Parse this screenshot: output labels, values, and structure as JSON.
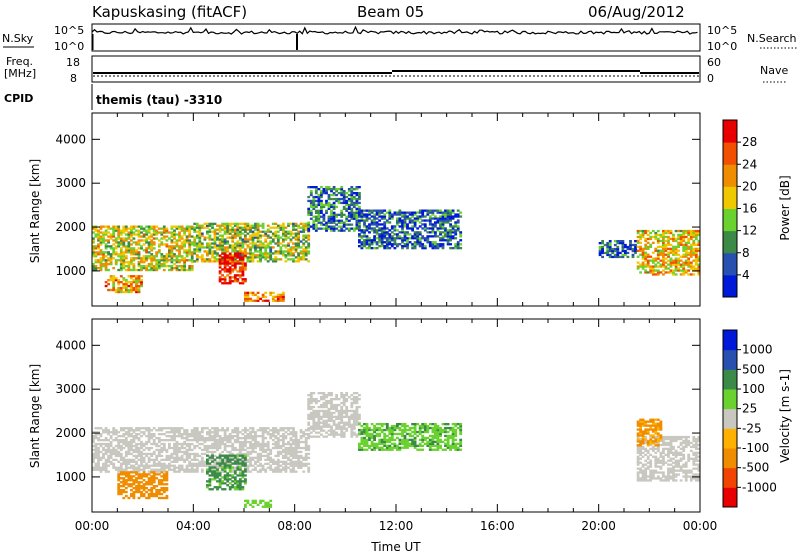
{
  "header": {
    "station": "Kapuskasing (fitACF)",
    "beam": "Beam 05",
    "date": "06/Aug/2012"
  },
  "status_panels": {
    "nsky": {
      "label": "N.Sky",
      "tick_top": "10^5",
      "tick_bottom": "10^0",
      "right_label": "N.Search",
      "right_tick_top": "10^5",
      "right_tick_bottom": "10^0"
    },
    "freq": {
      "label_line1": "Freq.",
      "label_line2": "[MHz]",
      "tick_top": "18",
      "tick_bottom": "8",
      "right_label": "Nave",
      "right_tick_top": "60",
      "right_tick_bottom": "0"
    },
    "cpid": {
      "label": "CPID",
      "value": "themis (tau) -3310"
    }
  },
  "colors": {
    "power": [
      "#0018d8",
      "#2850b0",
      "#3c8a48",
      "#6ad22e",
      "#f0c800",
      "#f08c00",
      "#f05000",
      "#e80000"
    ],
    "velocity": [
      "#e80000",
      "#f04400",
      "#f08c00",
      "#ffb000",
      "#c8c8c0",
      "#6ad22e",
      "#3c8a48",
      "#2850b0",
      "#0018d8"
    ],
    "ground": "#c8c8c0"
  },
  "chart_data": [
    {
      "type": "heatmap",
      "name": "Power",
      "ylabel": "Slant Range [km]",
      "ylim": [
        200,
        4600
      ],
      "yticks": [
        1000,
        2000,
        3000,
        4000
      ],
      "xlim": [
        0,
        24
      ],
      "colorbar": {
        "label": "Power [dB]",
        "range": [
          0,
          30
        ],
        "ticks": [
          "4",
          "8",
          "12",
          "16",
          "20",
          "24",
          "28"
        ]
      },
      "echo_bands": [
        {
          "t_start": 0.0,
          "t_end": 4.0,
          "range_low": 1000,
          "range_high": 2000,
          "power": 16
        },
        {
          "t_start": 4.0,
          "t_end": 8.5,
          "range_low": 1200,
          "range_high": 2100,
          "power": 14
        },
        {
          "t_start": 5.0,
          "t_end": 6.0,
          "range_low": 700,
          "range_high": 1400,
          "power": 28
        },
        {
          "t_start": 8.5,
          "t_end": 10.5,
          "range_low": 1900,
          "range_high": 2900,
          "power": 8
        },
        {
          "t_start": 10.5,
          "t_end": 14.5,
          "range_low": 1500,
          "range_high": 2400,
          "power": 6
        },
        {
          "t_start": 0.5,
          "t_end": 2.0,
          "range_low": 500,
          "range_high": 900,
          "power": 20
        },
        {
          "t_start": 6.0,
          "t_end": 7.5,
          "range_low": 300,
          "range_high": 500,
          "power": 22
        },
        {
          "t_start": 20.0,
          "t_end": 21.5,
          "range_low": 1300,
          "range_high": 1700,
          "power": 6
        },
        {
          "t_start": 21.5,
          "t_end": 24.0,
          "range_low": 900,
          "range_high": 1900,
          "power": 18
        }
      ]
    },
    {
      "type": "heatmap",
      "name": "Velocity",
      "xlabel": "Time UT",
      "ylabel": "Slant Range [km]",
      "ylim": [
        200,
        4600
      ],
      "yticks": [
        1000,
        2000,
        3000,
        4000
      ],
      "xlim": [
        0,
        24
      ],
      "xticks": [
        "00:00",
        "04:00",
        "08:00",
        "12:00",
        "16:00",
        "20:00",
        "00:00"
      ],
      "colorbar": {
        "label": "Velocity [m s-1]",
        "ticks": [
          "-1000",
          "-500",
          "-100",
          "-25",
          "25",
          "100",
          "500",
          "1000"
        ]
      },
      "echo_bands": [
        {
          "t_start": 0.0,
          "t_end": 8.5,
          "range_low": 1100,
          "range_high": 2100,
          "velocity": 0
        },
        {
          "t_start": 1.0,
          "t_end": 3.0,
          "range_low": 500,
          "range_high": 1100,
          "velocity": -300
        },
        {
          "t_start": 4.5,
          "t_end": 6.0,
          "range_low": 700,
          "range_high": 1500,
          "velocity": 150
        },
        {
          "t_start": 8.5,
          "t_end": 10.5,
          "range_low": 1900,
          "range_high": 2900,
          "velocity": 0
        },
        {
          "t_start": 10.5,
          "t_end": 14.5,
          "range_low": 1600,
          "range_high": 2200,
          "velocity": 80
        },
        {
          "t_start": 6.0,
          "t_end": 7.0,
          "range_low": 300,
          "range_high": 450,
          "velocity": 50
        },
        {
          "t_start": 21.5,
          "t_end": 24.0,
          "range_low": 900,
          "range_high": 1900,
          "velocity": 0
        },
        {
          "t_start": 21.5,
          "t_end": 22.5,
          "range_low": 1700,
          "range_high": 2300,
          "velocity": -120
        }
      ]
    }
  ]
}
